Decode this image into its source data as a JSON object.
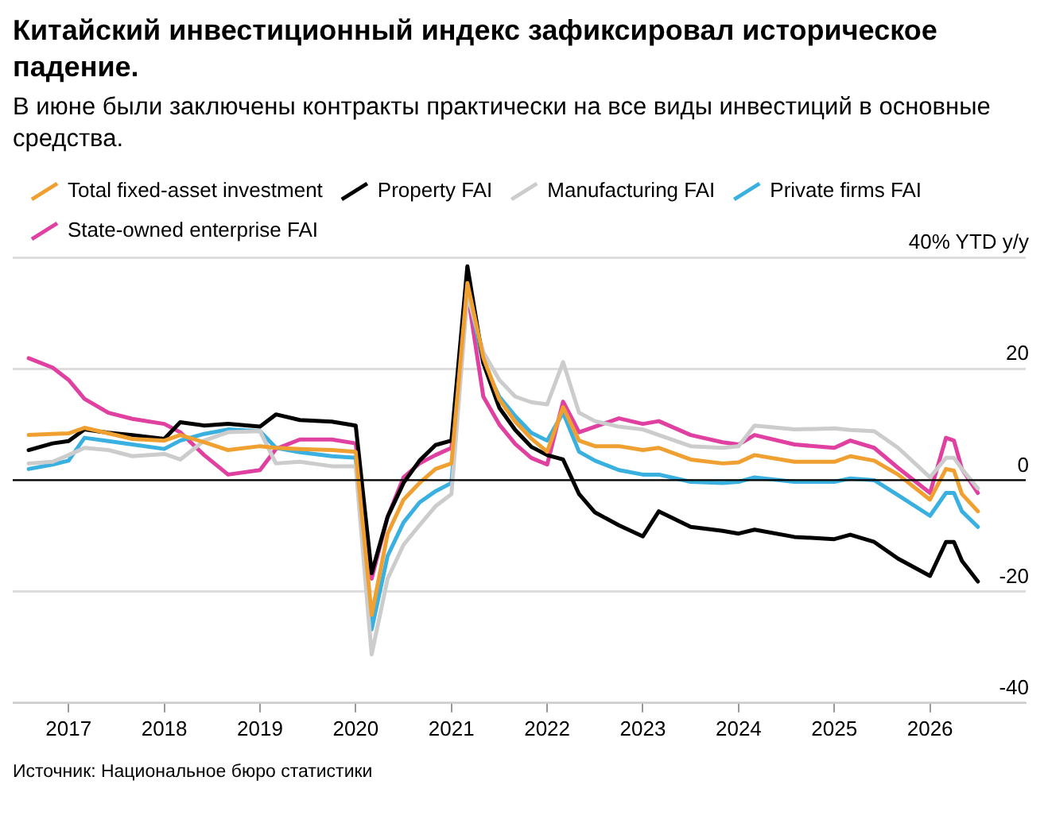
{
  "chart_data": {
    "type": "line",
    "title": "Китайский инвестиционный индекс зафиксировал историческое падение.",
    "subtitle": "В июне были заключены контракты практически на все виды инвестиций в основные средства.",
    "x": [
      "2016-08",
      "2016-11",
      "2017-01",
      "2017-03",
      "2017-06",
      "2017-09",
      "2018-01",
      "2018-03",
      "2018-06",
      "2018-09",
      "2019-01",
      "2019-03",
      "2019-06",
      "2019-10",
      "2020-01",
      "2020-03",
      "2020-05",
      "2020-07",
      "2020-09",
      "2020-11",
      "2021-01",
      "2021-03",
      "2021-05",
      "2021-07",
      "2021-09",
      "2021-11",
      "2022-01",
      "2022-03",
      "2022-05",
      "2022-07",
      "2022-10",
      "2023-01",
      "2023-03",
      "2023-07",
      "2023-11",
      "2024-01",
      "2024-03",
      "2024-08",
      "2025-01",
      "2025-03",
      "2025-06",
      "2025-09",
      "2026-01",
      "2026-03",
      "2026-04",
      "2026-05",
      "2026-07"
    ],
    "series": [
      {
        "name": "Total fixed-asset investment",
        "color": "#f0a030",
        "values": [
          8.1,
          8.3,
          8.4,
          9.4,
          8.4,
          7.4,
          7.1,
          8.1,
          6.8,
          5.4,
          6.1,
          5.8,
          5.6,
          5.4,
          5.1,
          -24.2,
          -9.6,
          -3.5,
          -0.5,
          2.0,
          3.0,
          35.4,
          22,
          14.5,
          10.5,
          7.5,
          5.1,
          13.1,
          7.1,
          6.1,
          6.1,
          5.4,
          5.8,
          3.7,
          3.0,
          3.2,
          4.5,
          3.3,
          3.3,
          4.3,
          3.5,
          1.0,
          -3.5,
          2.0,
          1.7,
          -2.5,
          -5.6
        ]
      },
      {
        "name": "Property FAI",
        "color": "#000000",
        "values": [
          5.4,
          6.6,
          7.0,
          9.1,
          8.5,
          8.1,
          7.4,
          10.4,
          9.8,
          10.1,
          9.6,
          11.8,
          10.8,
          10.5,
          9.8,
          -16.7,
          -6.6,
          -0.5,
          3.5,
          6.3,
          7.1,
          38.4,
          21,
          13,
          9,
          6,
          4.5,
          3.7,
          -2.5,
          -5.8,
          -8.1,
          -10.1,
          -5.6,
          -8.4,
          -9.1,
          -9.6,
          -8.9,
          -10.2,
          -10.6,
          -9.8,
          -11.1,
          -14.1,
          -17.2,
          -11.1,
          -11.1,
          -14.5,
          -18.2
        ]
      },
      {
        "name": "Manufacturing FAI",
        "color": "#cccccc",
        "values": [
          3.0,
          3.3,
          4.5,
          5.8,
          5.4,
          4.3,
          4.7,
          3.7,
          7.1,
          8.6,
          8.8,
          3.0,
          3.3,
          2.5,
          2.5,
          -31.3,
          -17.7,
          -11.6,
          -8.1,
          -4.7,
          -2.5,
          33.3,
          23,
          18,
          15,
          14,
          13.6,
          21.2,
          12.1,
          10.6,
          9.6,
          9.1,
          8.1,
          6.1,
          5.8,
          6.1,
          9.8,
          9.1,
          9.3,
          9.0,
          8.8,
          5.8,
          0.5,
          4.0,
          4.0,
          2.0,
          -1.5
        ]
      },
      {
        "name": "Private firms FAI",
        "color": "#3ab0e0",
        "values": [
          2.0,
          2.8,
          3.5,
          7.6,
          7.0,
          6.4,
          5.6,
          7.1,
          8.3,
          9.1,
          8.8,
          5.8,
          5.0,
          4.3,
          4.0,
          -26.8,
          -13.6,
          -7.6,
          -4.0,
          -2.0,
          -0.5,
          34.3,
          21,
          15,
          11.5,
          8.5,
          7.1,
          12.1,
          5.1,
          3.5,
          1.8,
          1.0,
          1.0,
          -0.3,
          -0.5,
          -0.3,
          0.5,
          -0.3,
          -0.3,
          0.3,
          0,
          -2.7,
          -6.4,
          -2.3,
          -2.3,
          -5.6,
          -8.4
        ]
      },
      {
        "name": "State-owned enterprise FAI",
        "color": "#e040a0",
        "values": [
          21.9,
          20.2,
          18,
          14.6,
          12.1,
          11.0,
          10.1,
          8.6,
          4.5,
          1.0,
          1.8,
          5.6,
          7.3,
          7.3,
          6.6,
          -17.7,
          -6.6,
          0.5,
          3.0,
          4.5,
          5.8,
          33.8,
          15,
          10,
          6.5,
          4,
          2.8,
          14.1,
          8.6,
          9.6,
          11.1,
          10.1,
          10.6,
          8.1,
          6.8,
          6.4,
          8.1,
          6.4,
          5.8,
          7.1,
          5.8,
          2.2,
          -2.3,
          7.6,
          7.1,
          2.0,
          -2.3
        ]
      }
    ],
    "xlim": [
      "2016-06",
      "2027-01"
    ],
    "xticks": [
      {
        "value": "2017-01",
        "label": "2017"
      },
      {
        "value": "2018-01",
        "label": "2018"
      },
      {
        "value": "2019-01",
        "label": "2019"
      },
      {
        "value": "2020-01",
        "label": "2020"
      },
      {
        "value": "2021-01",
        "label": "2021"
      },
      {
        "value": "2022-01",
        "label": "2022"
      },
      {
        "value": "2023-01",
        "label": "2023"
      },
      {
        "value": "2024-01",
        "label": "2024"
      },
      {
        "value": "2025-01",
        "label": "2025"
      },
      {
        "value": "2026-01",
        "label": "2026"
      }
    ],
    "ylim": [
      -40,
      40
    ],
    "yticks": [
      -40,
      -20,
      0,
      20,
      {
        "value": 40,
        "label": "40% YTD y/y"
      }
    ],
    "ref_lines": [
      {
        "axis": "y",
        "value": 0,
        "color": "#000000"
      }
    ],
    "grid": "y",
    "legend": "top left",
    "marker": "none",
    "line_style": "solid",
    "annotations": [
      "Источник: Национальное бюро статистики"
    ]
  }
}
